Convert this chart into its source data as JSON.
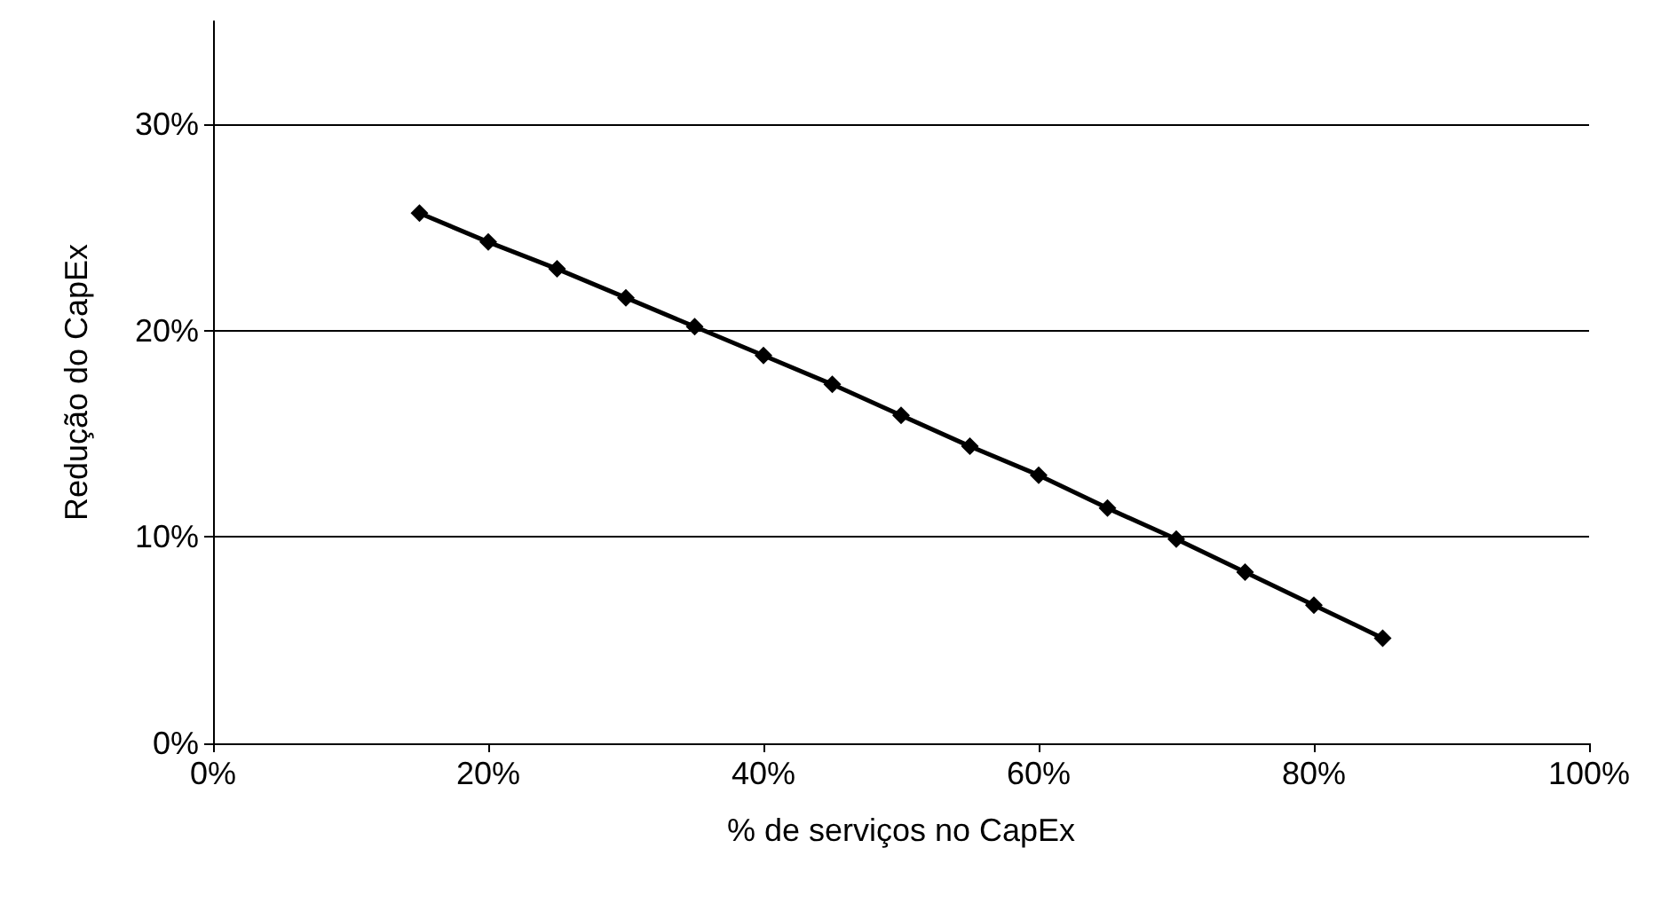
{
  "chart_data": {
    "type": "line",
    "xlabel": "% de serviços no CapEx",
    "ylabel": "Redução do CapEx",
    "x": [
      15,
      20,
      25,
      30,
      35,
      40,
      45,
      50,
      55,
      60,
      65,
      70,
      75,
      80,
      85
    ],
    "series": [
      {
        "color": "#000000",
        "values": [
          25.7,
          24.3,
          23.0,
          21.6,
          20.2,
          18.8,
          17.4,
          15.9,
          14.4,
          13.0,
          11.4,
          9.9,
          8.3,
          6.7,
          5.1
        ]
      }
    ],
    "xlim": [
      0,
      100
    ],
    "xticks": [
      {
        "value": 0,
        "label": "0%"
      },
      {
        "value": 20,
        "label": "20%"
      },
      {
        "value": 40,
        "label": "40%"
      },
      {
        "value": 60,
        "label": "60%"
      },
      {
        "value": 80,
        "label": "80%"
      },
      {
        "value": 100,
        "label": "100%"
      }
    ],
    "ylim": [
      0,
      35
    ],
    "yticks": [
      {
        "value": 0,
        "label": "0%"
      },
      {
        "value": 10,
        "label": "10%"
      },
      {
        "value": 20,
        "label": "20%"
      },
      {
        "value": 30,
        "label": "30%"
      }
    ],
    "grid": "y",
    "marker": "diamond",
    "line_style": "solid"
  }
}
